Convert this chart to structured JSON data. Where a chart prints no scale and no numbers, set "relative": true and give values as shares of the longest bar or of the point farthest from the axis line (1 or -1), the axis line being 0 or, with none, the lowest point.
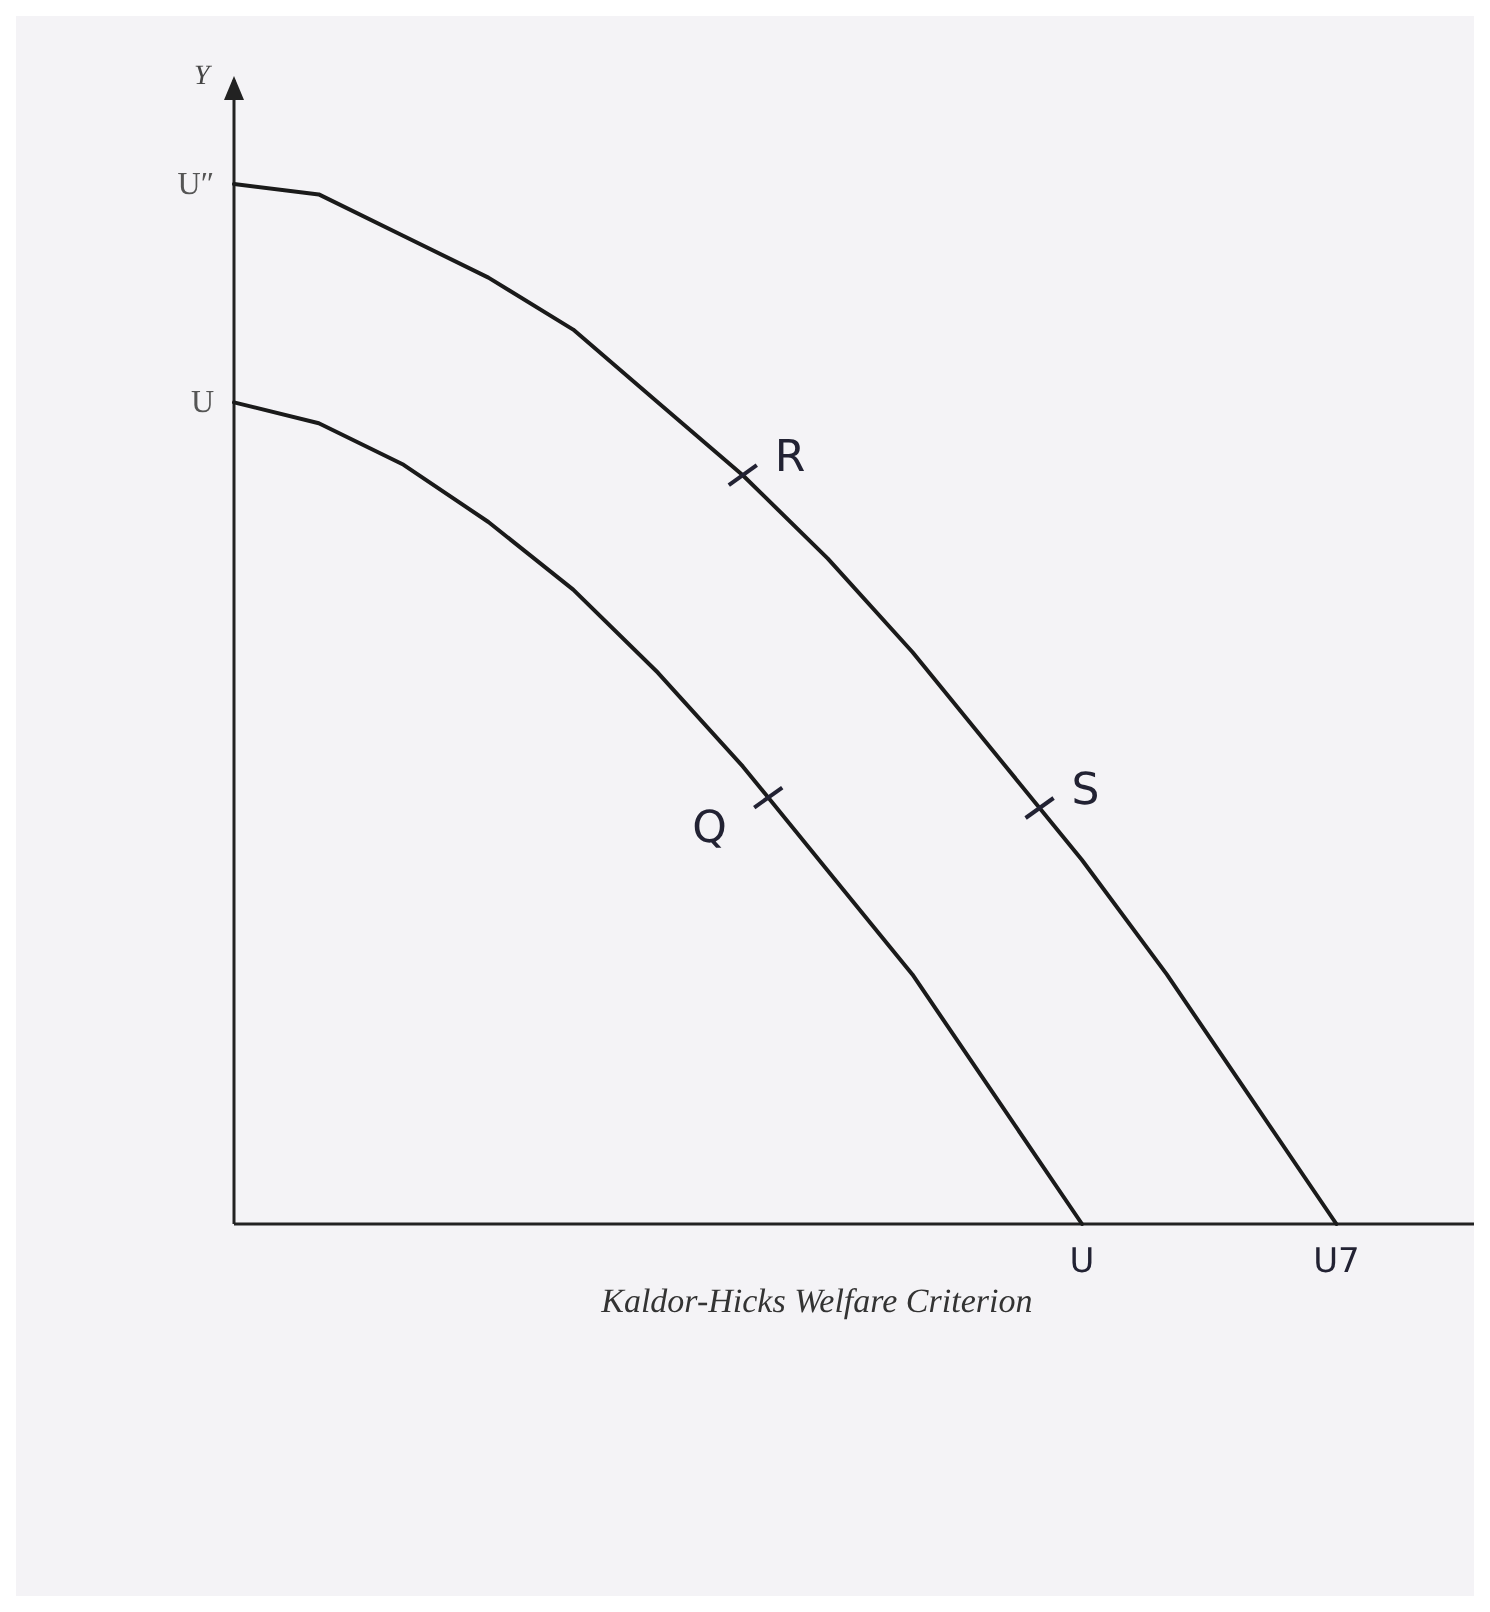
{
  "chart_data": {
    "type": "line",
    "title": "Kaldor-Hicks Welfare Criterion",
    "ylabel": "Y",
    "relative": true,
    "marker": "none",
    "line_style": "solid",
    "categories": [
      null,
      null,
      null,
      null,
      null,
      null,
      null,
      null,
      null,
      null,
      null,
      null,
      null,
      null
    ],
    "series": [
      {
        "color": "#1a1a1a",
        "values": [
          1,
          0.99,
          0.95,
          0.91,
          0.86,
          0.79,
          0.72,
          0.64,
          0.55,
          0.45,
          0.35,
          0.24,
          0.12,
          0
        ]
      },
      {
        "color": "#1a1a1a",
        "values": [
          0.79,
          0.77,
          0.73,
          0.675,
          0.61,
          0.53,
          0.44,
          0.34,
          0.24,
          0.12,
          0,
          null,
          null,
          null
        ]
      }
    ],
    "annotations": [
      "U″",
      "U",
      "U",
      "U7",
      "R",
      "S",
      "Q"
    ]
  }
}
